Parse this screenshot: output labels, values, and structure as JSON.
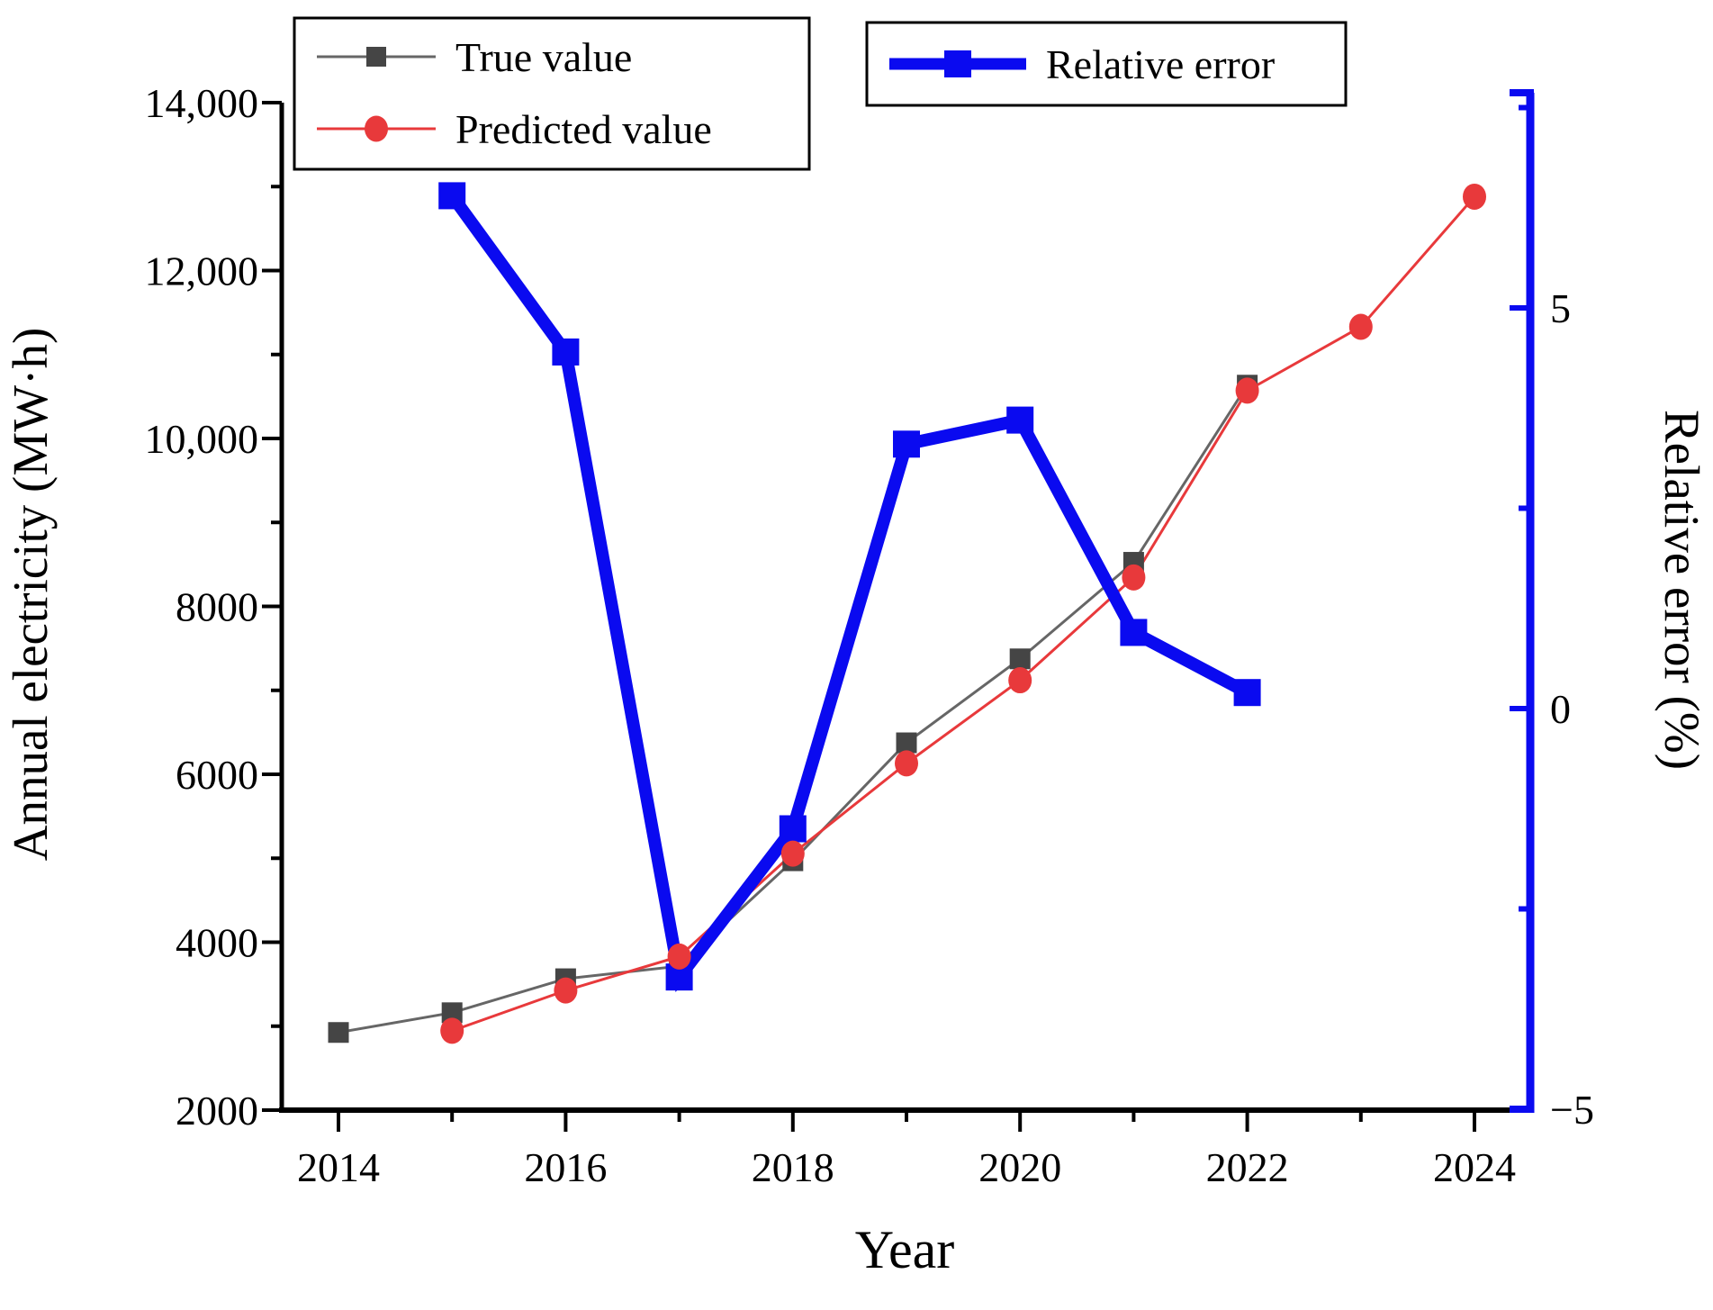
{
  "chart_data": {
    "type": "line",
    "title": "",
    "x_axis": {
      "label": "Year",
      "range": [
        2013.5,
        2024.5
      ],
      "major_ticks": [
        2014,
        2016,
        2018,
        2020,
        2022,
        2024
      ],
      "major_tick_labels": [
        "2014",
        "2016",
        "2018",
        "2020",
        "2022",
        "2024"
      ],
      "minor_ticks": [
        2015,
        2017,
        2019,
        2021,
        2023
      ]
    },
    "left_axis": {
      "label": "Annual electricity (MW·h)",
      "range": [
        2000,
        14200
      ],
      "major_ticks": [
        {
          "value": 2000,
          "label": "2000"
        },
        {
          "value": 4000,
          "label": "4000"
        },
        {
          "value": 6000,
          "label": "6000"
        },
        {
          "value": 8000,
          "label": "8000"
        },
        {
          "value": 10000,
          "label": "10,000"
        },
        {
          "value": 12000,
          "label": "12,000"
        },
        {
          "value": 14000,
          "label": "14,000"
        }
      ],
      "minor_ticks": [
        3000,
        5000,
        7000,
        9000,
        11000,
        13000
      ]
    },
    "right_axis": {
      "label": "Relative error (%)",
      "color": "#0A0AF0",
      "range": [
        -5,
        7.7
      ],
      "major_ticks": [
        {
          "value": 5,
          "label": "5"
        },
        {
          "value": 0,
          "label": "0"
        },
        {
          "value": -5,
          "label": "−5"
        }
      ],
      "minor_ticks": [
        7.5,
        2.5,
        -2.5
      ]
    },
    "series": [
      {
        "name": "True value",
        "axis": "left",
        "marker": "square",
        "marker_color": "#454545",
        "line_color": "#666666",
        "points": [
          [
            2014,
            2925
          ],
          [
            2015,
            3160
          ],
          [
            2016,
            3565
          ],
          [
            2017,
            3715
          ],
          [
            2018,
            4970
          ],
          [
            2019,
            6375
          ],
          [
            2020,
            7375
          ],
          [
            2021,
            8525
          ],
          [
            2022,
            10635
          ]
        ]
      },
      {
        "name": "Predicted value",
        "axis": "left",
        "marker": "circle",
        "marker_color": "#E8393B",
        "line_color": "#E8393B",
        "points": [
          [
            2015,
            2945
          ],
          [
            2016,
            3425
          ],
          [
            2017,
            3830
          ],
          [
            2018,
            5055
          ],
          [
            2019,
            6130
          ],
          [
            2020,
            7120
          ],
          [
            2021,
            8345
          ],
          [
            2022,
            10570
          ],
          [
            2023,
            11330
          ],
          [
            2024,
            12880
          ]
        ]
      },
      {
        "name": "Relative error",
        "axis": "right",
        "marker": "square",
        "marker_color": "#0A0AF0",
        "line_color": "#0A0AF0",
        "points": [
          [
            2015,
            6.4
          ],
          [
            2016,
            4.45
          ],
          [
            2017,
            -3.35
          ],
          [
            2018,
            -1.5
          ],
          [
            2019,
            3.3
          ],
          [
            2020,
            3.6
          ],
          [
            2021,
            0.95
          ],
          [
            2022,
            0.2
          ]
        ]
      }
    ],
    "legend_position": "top-inside",
    "grid": false
  },
  "legends": {
    "values_box": {
      "items": [
        {
          "label": "True value"
        },
        {
          "label": "Predicted value"
        }
      ]
    },
    "error_box": {
      "items": [
        {
          "label": "Relative error"
        }
      ]
    }
  },
  "colors": {
    "background": "#FFFFFF",
    "axis_black": "#000000",
    "axis_blue": "#0A0AF0",
    "true_marker": "#454545",
    "true_line": "#666666",
    "predicted": "#E8393B"
  }
}
